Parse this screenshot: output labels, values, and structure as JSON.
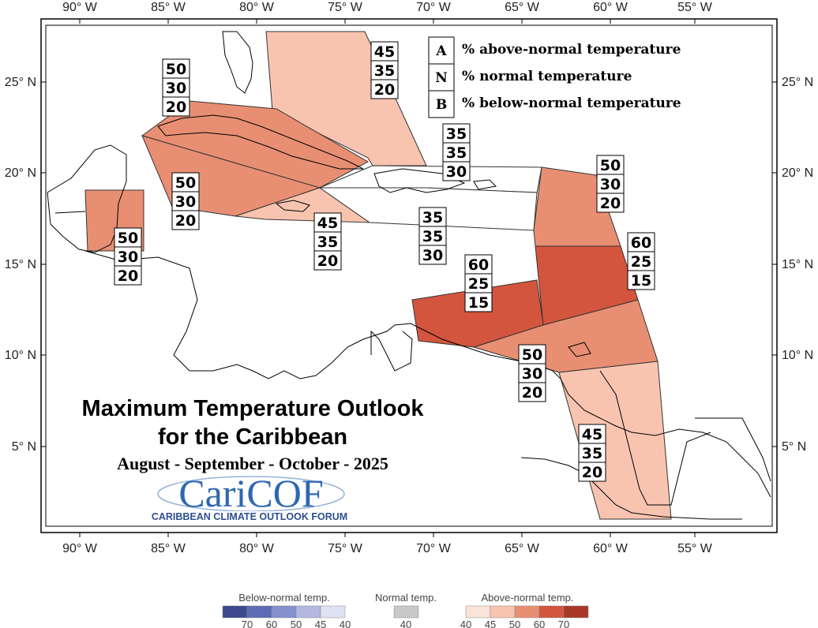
{
  "map": {
    "axis_labels": {
      "longitude": [
        "90° W",
        "85° W",
        "80° W",
        "75° W",
        "70° W",
        "65° W",
        "60° W",
        "55° W"
      ],
      "latitude": [
        "25° N",
        "20° N",
        "15° N",
        "10° N",
        "5° N"
      ]
    },
    "legend_key": [
      {
        "letter": "A",
        "text": "% above-normal temperature"
      },
      {
        "letter": "N",
        "text": "% normal temperature"
      },
      {
        "letter": "B",
        "text": "% below-normal temperature"
      }
    ],
    "regions": [
      {
        "name": "bahamas",
        "above": "45",
        "normal": "35",
        "below": "20",
        "color": "#f8c4b0"
      },
      {
        "name": "cuba-north",
        "above": "50",
        "normal": "30",
        "below": "20",
        "color": "#e88f73"
      },
      {
        "name": "cayman-jamaica-west",
        "above": "50",
        "normal": "30",
        "below": "20",
        "color": "#e88f73"
      },
      {
        "name": "belize",
        "above": "50",
        "normal": "30",
        "below": "20",
        "color": "#e88f73"
      },
      {
        "name": "jamaica",
        "above": "45",
        "normal": "35",
        "below": "20",
        "color": "#f8c4b0"
      },
      {
        "name": "hispaniola-north",
        "above": "35",
        "normal": "35",
        "below": "30",
        "color": "#ffffff"
      },
      {
        "name": "hispaniola-south",
        "above": "35",
        "normal": "35",
        "below": "30",
        "color": "#ffffff"
      },
      {
        "name": "leeward-islands",
        "above": "50",
        "normal": "30",
        "below": "20",
        "color": "#e88f73"
      },
      {
        "name": "windward-islands",
        "above": "60",
        "normal": "25",
        "below": "15",
        "color": "#d4553d"
      },
      {
        "name": "abc-islands",
        "above": "60",
        "normal": "25",
        "below": "15",
        "color": "#d4553d"
      },
      {
        "name": "trinidad",
        "above": "50",
        "normal": "30",
        "below": "20",
        "color": "#e88f73"
      },
      {
        "name": "guianas",
        "above": "45",
        "normal": "35",
        "below": "20",
        "color": "#f8c4b0"
      }
    ],
    "title_line1": "Maximum Temperature Outlook",
    "title_line2": "for the Caribbean",
    "season": "August - September - October - 2025",
    "logo_text": "CariCOF",
    "logo_subtext": "CARIBBEAN CLIMATE OUTLOOK FORUM"
  },
  "colorbar": {
    "below_title": "Below-normal temp.",
    "normal_title": "Normal temp.",
    "above_title": "Above-normal temp.",
    "below_colors": [
      "#3a4a8c",
      "#5c6cb4",
      "#8590cc",
      "#b3b8e0",
      "#dfe2f2"
    ],
    "below_ticks": [
      "70",
      "60",
      "50",
      "45",
      "40"
    ],
    "normal_color": "#c8c8c8",
    "normal_tick": "40",
    "above_colors": [
      "#fbe3d8",
      "#f8c4b0",
      "#e88f73",
      "#d4553d",
      "#a83828"
    ],
    "above_ticks": [
      "40",
      "45",
      "50",
      "60",
      "70"
    ]
  }
}
